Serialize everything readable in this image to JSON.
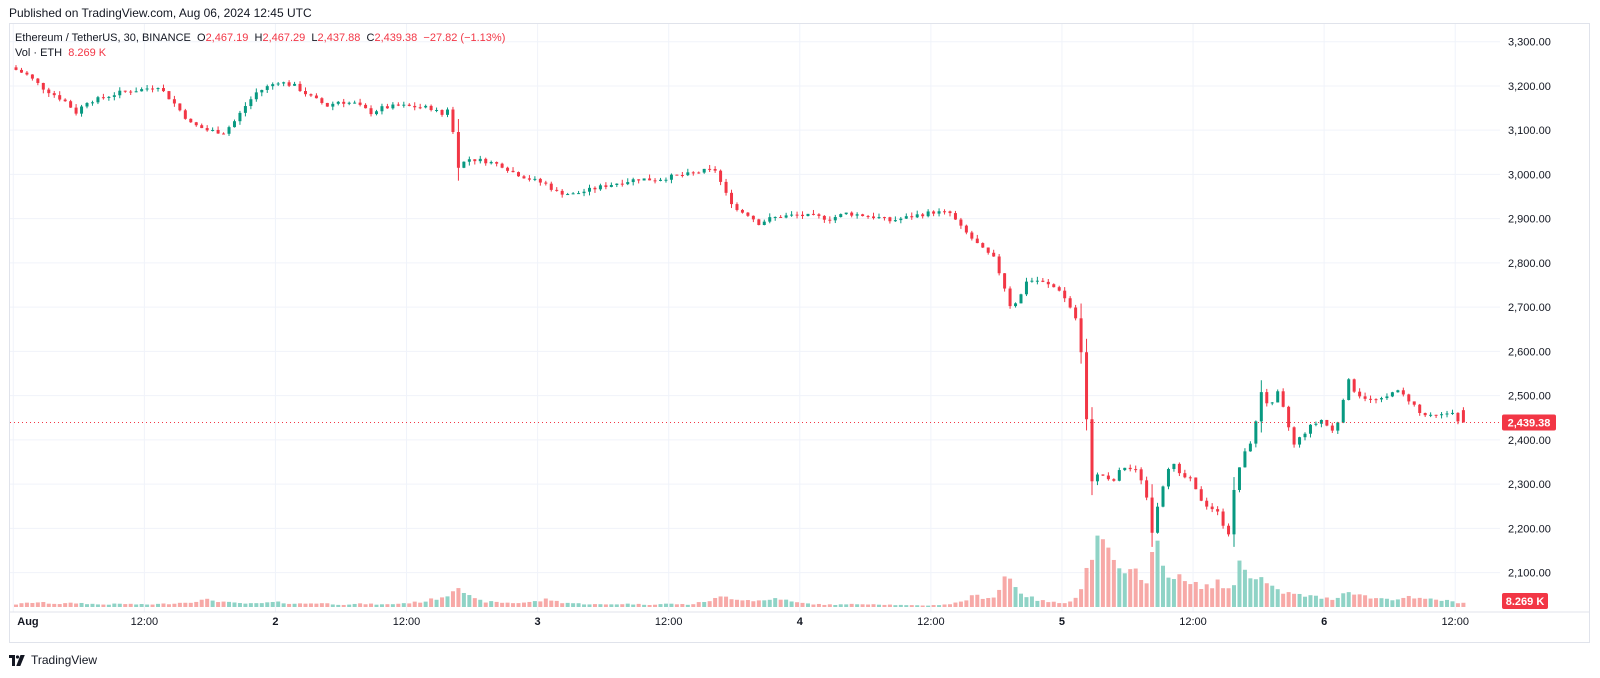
{
  "header": {
    "published": "Published on TradingView.com, Aug 06, 2024 12:45 UTC"
  },
  "legend": {
    "symbol": "Ethereum / TetherUS, 30, BINANCE",
    "open_label": "O",
    "open": "2,467.19",
    "high_label": "H",
    "high": "2,467.29",
    "low_label": "L",
    "low": "2,437.88",
    "close_label": "C",
    "close": "2,439.38",
    "change": "−27.82 (−1.13%)",
    "vol_label": "Vol · ETH",
    "vol_value": "8.269 K"
  },
  "footer": {
    "brand": "TradingView"
  },
  "colors": {
    "up": "#089981",
    "down": "#f23645",
    "vol_up": "#8fd3c6",
    "vol_down": "#f7a9a7",
    "grid": "#f0f3fa",
    "price_line": "#f23645"
  },
  "chart_data": {
    "type": "candlestick",
    "symbol": "ETH/USDT",
    "interval": "30",
    "exchange": "BINANCE",
    "y_axis": {
      "ticks": [
        "3,300.00",
        "3,200.00",
        "3,100.00",
        "3,000.00",
        "2,900.00",
        "2,800.00",
        "2,700.00",
        "2,600.00",
        "2,500.00",
        "2,400.00",
        "2,300.00",
        "2,200.00",
        "2,100.00"
      ],
      "range": [
        2020,
        3340
      ],
      "position": "right"
    },
    "x_axis": {
      "ticks": [
        {
          "label": "Aug",
          "t": 0
        },
        {
          "label": "12:00",
          "t": 12
        },
        {
          "label": "2",
          "t": 24
        },
        {
          "label": "12:00",
          "t": 36
        },
        {
          "label": "3",
          "t": 48
        },
        {
          "label": "12:00",
          "t": 60
        },
        {
          "label": "4",
          "t": 72
        },
        {
          "label": "12:00",
          "t": 84
        },
        {
          "label": "5",
          "t": 96
        },
        {
          "label": "12:00",
          "t": 108
        },
        {
          "label": "6",
          "t": 120
        },
        {
          "label": "12:00",
          "t": 132
        }
      ],
      "range": [
        -0.3,
        136.1
      ],
      "unit": "hours since Aug 1 00:00 UTC"
    },
    "last_price": 2439.38,
    "last_price_label": "2,439.38",
    "last_volume_label": "8.269 K",
    "price_anchors": [
      [
        0,
        3242
      ],
      [
        1.5,
        3225
      ],
      [
        3,
        3195
      ],
      [
        5,
        3165
      ],
      [
        6,
        3140
      ],
      [
        7,
        3165
      ],
      [
        8,
        3170
      ],
      [
        10,
        3185
      ],
      [
        12,
        3192
      ],
      [
        13.5,
        3200
      ],
      [
        15,
        3160
      ],
      [
        16.5,
        3115
      ],
      [
        18,
        3100
      ],
      [
        19.5,
        3095
      ],
      [
        20.5,
        3120
      ],
      [
        21.5,
        3155
      ],
      [
        22.5,
        3185
      ],
      [
        23.5,
        3198
      ],
      [
        24.5,
        3210
      ],
      [
        26,
        3200
      ],
      [
        27.5,
        3175
      ],
      [
        29,
        3155
      ],
      [
        30,
        3165
      ],
      [
        31.5,
        3160
      ],
      [
        33,
        3140
      ],
      [
        34,
        3150
      ],
      [
        35.5,
        3155
      ],
      [
        37,
        3153
      ],
      [
        38.5,
        3150
      ],
      [
        39.5,
        3135
      ],
      [
        40.2,
        3155
      ],
      [
        40.6,
        3075
      ],
      [
        41,
        3020
      ],
      [
        42,
        3035
      ],
      [
        43.5,
        3030
      ],
      [
        45,
        3020
      ],
      [
        46,
        3005
      ],
      [
        47.5,
        2990
      ],
      [
        49,
        2978
      ],
      [
        50,
        2960
      ],
      [
        51.5,
        2955
      ],
      [
        53,
        2965
      ],
      [
        54.5,
        2975
      ],
      [
        56,
        2983
      ],
      [
        57.5,
        2990
      ],
      [
        59,
        2988
      ],
      [
        60.5,
        2995
      ],
      [
        62,
        3000
      ],
      [
        63.5,
        3008
      ],
      [
        64.5,
        3010
      ],
      [
        65.5,
        2955
      ],
      [
        66.5,
        2920
      ],
      [
        67.5,
        2910
      ],
      [
        68.5,
        2890
      ],
      [
        69.5,
        2900
      ],
      [
        70.5,
        2905
      ],
      [
        72,
        2908
      ],
      [
        73.5,
        2905
      ],
      [
        75,
        2900
      ],
      [
        76.5,
        2912
      ],
      [
        78,
        2908
      ],
      [
        79.5,
        2902
      ],
      [
        80.5,
        2895
      ],
      [
        81.5,
        2900
      ],
      [
        83,
        2908
      ],
      [
        84.5,
        2915
      ],
      [
        86,
        2912
      ],
      [
        87,
        2880
      ],
      [
        88,
        2855
      ],
      [
        89,
        2830
      ],
      [
        90,
        2810
      ],
      [
        90.8,
        2760
      ],
      [
        91.5,
        2705
      ],
      [
        92.3,
        2715
      ],
      [
        93,
        2760
      ],
      [
        94,
        2760
      ],
      [
        95,
        2750
      ],
      [
        96,
        2740
      ],
      [
        97,
        2700
      ],
      [
        97.8,
        2660
      ],
      [
        98.4,
        2470
      ],
      [
        99,
        2310
      ],
      [
        99.8,
        2325
      ],
      [
        100.8,
        2300
      ],
      [
        101.8,
        2340
      ],
      [
        103,
        2330
      ],
      [
        103.8,
        2300
      ],
      [
        104.5,
        2195
      ],
      [
        105.2,
        2275
      ],
      [
        106.2,
        2355
      ],
      [
        107,
        2320
      ],
      [
        108,
        2310
      ],
      [
        108.8,
        2270
      ],
      [
        109.6,
        2250
      ],
      [
        110.4,
        2240
      ],
      [
        111,
        2210
      ],
      [
        111.5,
        2190
      ],
      [
        112.2,
        2320
      ],
      [
        113,
        2370
      ],
      [
        113.8,
        2410
      ],
      [
        114.5,
        2510
      ],
      [
        115.3,
        2470
      ],
      [
        116,
        2505
      ],
      [
        116.8,
        2450
      ],
      [
        117.4,
        2385
      ],
      [
        118.2,
        2410
      ],
      [
        119,
        2430
      ],
      [
        120,
        2445
      ],
      [
        121,
        2420
      ],
      [
        121.7,
        2450
      ],
      [
        122.3,
        2540
      ],
      [
        123.2,
        2505
      ],
      [
        124.5,
        2490
      ],
      [
        125.8,
        2490
      ],
      [
        126.6,
        2515
      ],
      [
        127.5,
        2500
      ],
      [
        128.3,
        2485
      ],
      [
        129,
        2460
      ],
      [
        130,
        2452
      ],
      [
        131,
        2455
      ],
      [
        132.2,
        2467.19
      ],
      [
        132.5,
        2439.38
      ]
    ],
    "volume_anchors": [
      [
        0,
        3
      ],
      [
        2,
        6
      ],
      [
        4,
        4
      ],
      [
        6,
        5
      ],
      [
        8,
        3
      ],
      [
        10,
        4
      ],
      [
        12,
        3
      ],
      [
        14,
        4
      ],
      [
        16,
        6
      ],
      [
        17,
        8
      ],
      [
        18,
        9
      ],
      [
        19,
        7
      ],
      [
        20,
        5
      ],
      [
        22,
        4
      ],
      [
        24,
        6
      ],
      [
        26,
        4
      ],
      [
        28,
        5
      ],
      [
        30,
        3
      ],
      [
        32,
        4
      ],
      [
        34,
        3
      ],
      [
        36,
        5
      ],
      [
        37,
        6
      ],
      [
        38,
        8
      ],
      [
        39,
        12
      ],
      [
        40,
        16
      ],
      [
        40.6,
        34
      ],
      [
        41,
        22
      ],
      [
        42,
        10
      ],
      [
        43,
        7
      ],
      [
        44,
        6
      ],
      [
        46,
        5
      ],
      [
        47,
        6
      ],
      [
        48,
        7
      ],
      [
        49,
        10
      ],
      [
        50,
        6
      ],
      [
        52,
        4
      ],
      [
        54,
        3
      ],
      [
        56,
        4
      ],
      [
        58,
        3
      ],
      [
        60,
        4
      ],
      [
        62,
        3
      ],
      [
        63,
        6
      ],
      [
        64,
        9
      ],
      [
        65,
        13
      ],
      [
        66,
        11
      ],
      [
        67,
        9
      ],
      [
        68,
        8
      ],
      [
        69,
        8
      ],
      [
        70,
        12
      ],
      [
        71,
        7
      ],
      [
        72,
        5
      ],
      [
        74,
        3
      ],
      [
        76,
        3
      ],
      [
        78,
        4
      ],
      [
        80,
        3
      ],
      [
        82,
        2
      ],
      [
        84,
        2
      ],
      [
        86,
        4
      ],
      [
        87,
        8
      ],
      [
        88,
        14
      ],
      [
        89,
        12
      ],
      [
        90,
        13
      ],
      [
        90.8,
        40
      ],
      [
        91.5,
        32
      ],
      [
        92.3,
        18
      ],
      [
        93,
        12
      ],
      [
        94,
        8
      ],
      [
        95,
        6
      ],
      [
        96,
        5
      ],
      [
        97,
        9
      ],
      [
        97.8,
        22
      ],
      [
        98.4,
        55
      ],
      [
        99,
        80
      ],
      [
        99.8,
        72
      ],
      [
        100.8,
        60
      ],
      [
        101.5,
        35
      ],
      [
        102.2,
        40
      ],
      [
        103,
        45
      ],
      [
        103.8,
        35
      ],
      [
        104.5,
        82
      ],
      [
        105.2,
        52
      ],
      [
        106.2,
        40
      ],
      [
        107,
        33
      ],
      [
        108,
        26
      ],
      [
        108.8,
        28
      ],
      [
        109.6,
        25
      ],
      [
        110.4,
        30
      ],
      [
        111,
        24
      ],
      [
        111.5,
        22
      ],
      [
        112.2,
        52
      ],
      [
        113,
        45
      ],
      [
        113.8,
        40
      ],
      [
        114.5,
        32
      ],
      [
        115.5,
        20
      ],
      [
        116.5,
        18
      ],
      [
        117.4,
        15
      ],
      [
        118.4,
        14
      ],
      [
        119.5,
        12
      ],
      [
        120.5,
        10
      ],
      [
        121.2,
        12
      ],
      [
        122.3,
        22
      ],
      [
        123,
        17
      ],
      [
        124,
        12
      ],
      [
        125,
        11
      ],
      [
        126,
        10
      ],
      [
        127,
        11
      ],
      [
        128,
        12
      ],
      [
        129,
        9
      ],
      [
        130,
        10
      ],
      [
        131,
        8
      ],
      [
        132.2,
        6
      ],
      [
        132.5,
        5
      ]
    ]
  }
}
